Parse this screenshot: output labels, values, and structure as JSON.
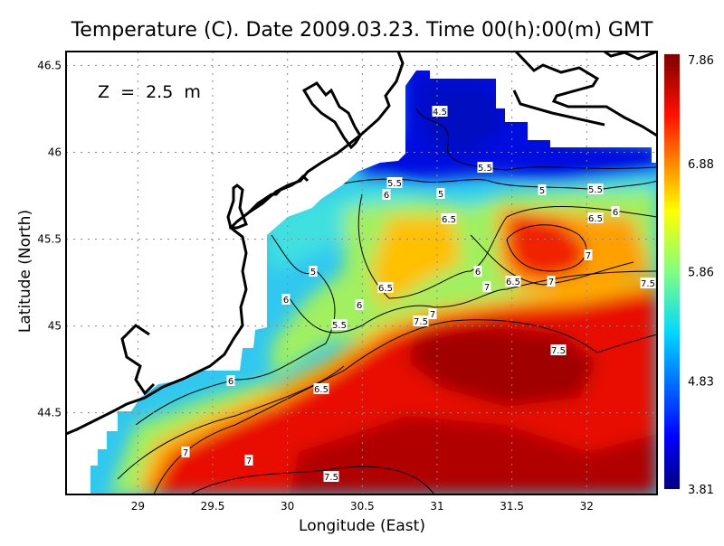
{
  "chart_data": {
    "type": "heatmap",
    "title": "Temperature (C). Date 2009.03.23. Time 00(h):00(m) GMT",
    "xlabel": "Longitude (East)",
    "ylabel": "Latitude (North)",
    "annotation": "Z  =  2.5  m",
    "xlim": [
      28.52,
      32.47
    ],
    "ylim": [
      44.03,
      46.58
    ],
    "xticks": [
      "29",
      "29.5",
      "30",
      "30.5",
      "31",
      "31.5",
      "32"
    ],
    "xtick_values": [
      29,
      29.5,
      30,
      30.5,
      31,
      31.5,
      32
    ],
    "yticks": [
      "46.5",
      "46",
      "45.5",
      "45",
      "44.5"
    ],
    "ytick_values": [
      46.5,
      46,
      45.5,
      45,
      44.5
    ],
    "grid": true,
    "colorbar": {
      "vmin": 3.81,
      "vmax": 7.86,
      "ticks": [
        "7.86",
        "6.88",
        "5.86",
        "4.83",
        "3.81"
      ],
      "tick_values": [
        7.86,
        6.88,
        5.86,
        4.83,
        3.81
      ],
      "colormap": "jet",
      "placement": "right"
    },
    "contour_levels": [
      4.5,
      5,
      5.5,
      6,
      6.5,
      7,
      7.5
    ],
    "contour_labels": [
      "4.5",
      "5.5",
      "5.5",
      "6",
      "5",
      "5",
      "5.5",
      "6",
      "6.5",
      "6.5",
      "5",
      "6",
      "7",
      "6.5",
      "7",
      "7",
      "7.5",
      "6.5",
      "6",
      "6",
      "7",
      "5.5",
      "7.5",
      "7.5",
      "6",
      "6.5",
      "7",
      "7",
      "7.5"
    ]
  },
  "colors": {
    "cold": "#0010e0",
    "cool": "#20c8f0",
    "mid": "#a0f060",
    "warm": "#ffd000",
    "hot": "#f01000",
    "hottest": "#a00000"
  }
}
